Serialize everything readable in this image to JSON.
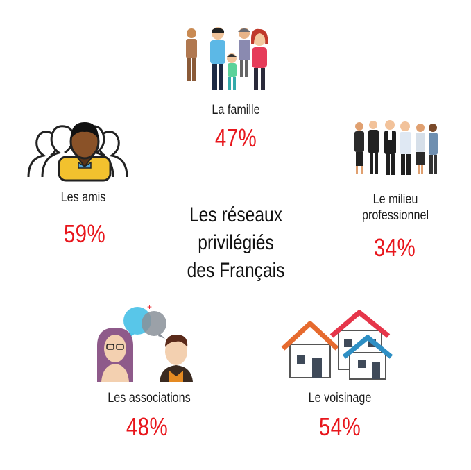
{
  "title": [
    "Les réseaux",
    "privilégiés",
    "des Français"
  ],
  "items": [
    {
      "label": "La famille",
      "value": "47%"
    },
    {
      "label": "Les amis",
      "value": "59%"
    },
    {
      "label": "Le milieu",
      "label2": "professionnel",
      "value": "34%"
    },
    {
      "label": "Les associations",
      "value": "48%"
    },
    {
      "label": "Le voisinage",
      "value": "54%"
    }
  ],
  "colors": {
    "percent": "#e8161c",
    "text": "#1a1a1a"
  },
  "icons": [
    "family-icon",
    "friends-icon",
    "business-people-icon",
    "associations-chat-icon",
    "houses-icon"
  ]
}
